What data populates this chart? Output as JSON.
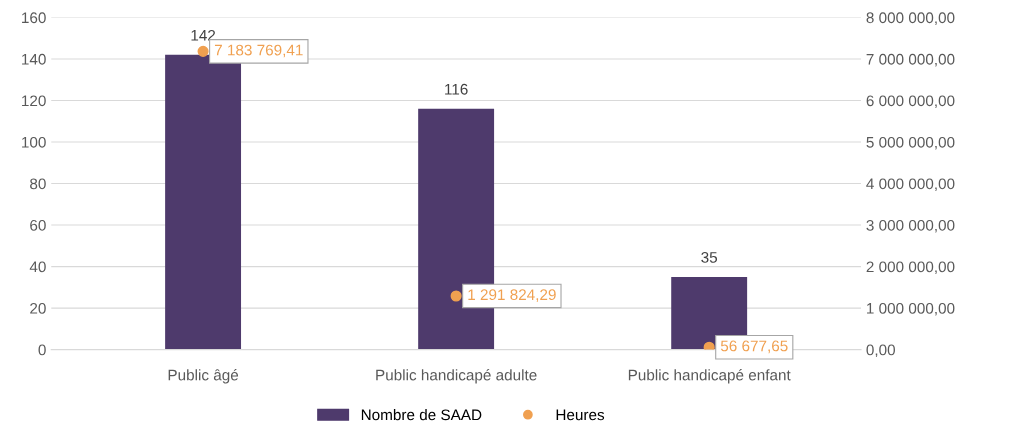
{
  "chart_data": {
    "type": "bar",
    "categories": [
      "Public âgé",
      "Public handicapé adulte",
      "Public handicapé enfant"
    ],
    "series": [
      {
        "name": "Nombre de SAAD",
        "color": "#4e3a6c",
        "values": [
          142,
          116,
          35
        ],
        "value_labels": [
          "142",
          "116",
          "35"
        ]
      },
      {
        "name": "Heures",
        "type": "scatter",
        "axis": "y2",
        "color": "#f0a050",
        "values": [
          7183769.41,
          1291824.29,
          56677.65
        ],
        "value_labels": [
          "7 183 769,41",
          "1 291 824,29",
          "56 677,65"
        ]
      }
    ],
    "ylim": [
      0,
      160
    ],
    "yticks": [
      0,
      20,
      40,
      60,
      80,
      100,
      120,
      140,
      160
    ],
    "y2lim": [
      0,
      8000000
    ],
    "y2ticks": [
      {
        "value": 0,
        "label": "0,00"
      },
      {
        "value": 1000000,
        "label": "1 000 000,00"
      },
      {
        "value": 2000000,
        "label": "2 000 000,00"
      },
      {
        "value": 3000000,
        "label": "3 000 000,00"
      },
      {
        "value": 4000000,
        "label": "4 000 000,00"
      },
      {
        "value": 5000000,
        "label": "5 000 000,00"
      },
      {
        "value": 6000000,
        "label": "6 000 000,00"
      },
      {
        "value": 7000000,
        "label": "7 000 000,00"
      },
      {
        "value": 8000000,
        "label": "8 000 000,00"
      }
    ],
    "grid": "y",
    "legend": "bottom",
    "marker": "circle"
  }
}
